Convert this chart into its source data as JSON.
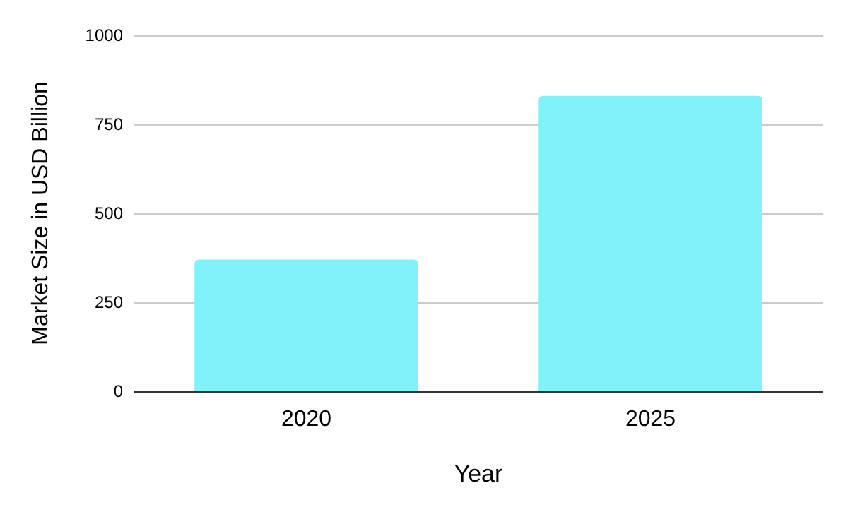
{
  "chart_data": {
    "type": "bar",
    "xlabel": "Year",
    "ylabel": "Market Size in USD Billion",
    "categories": [
      "2020",
      "2025"
    ],
    "values": [
      370,
      830
    ],
    "color": "#80f3f8",
    "ylim": [
      0,
      1000
    ],
    "yticks": [
      0,
      250,
      500,
      750,
      1000
    ],
    "grid": "y"
  }
}
